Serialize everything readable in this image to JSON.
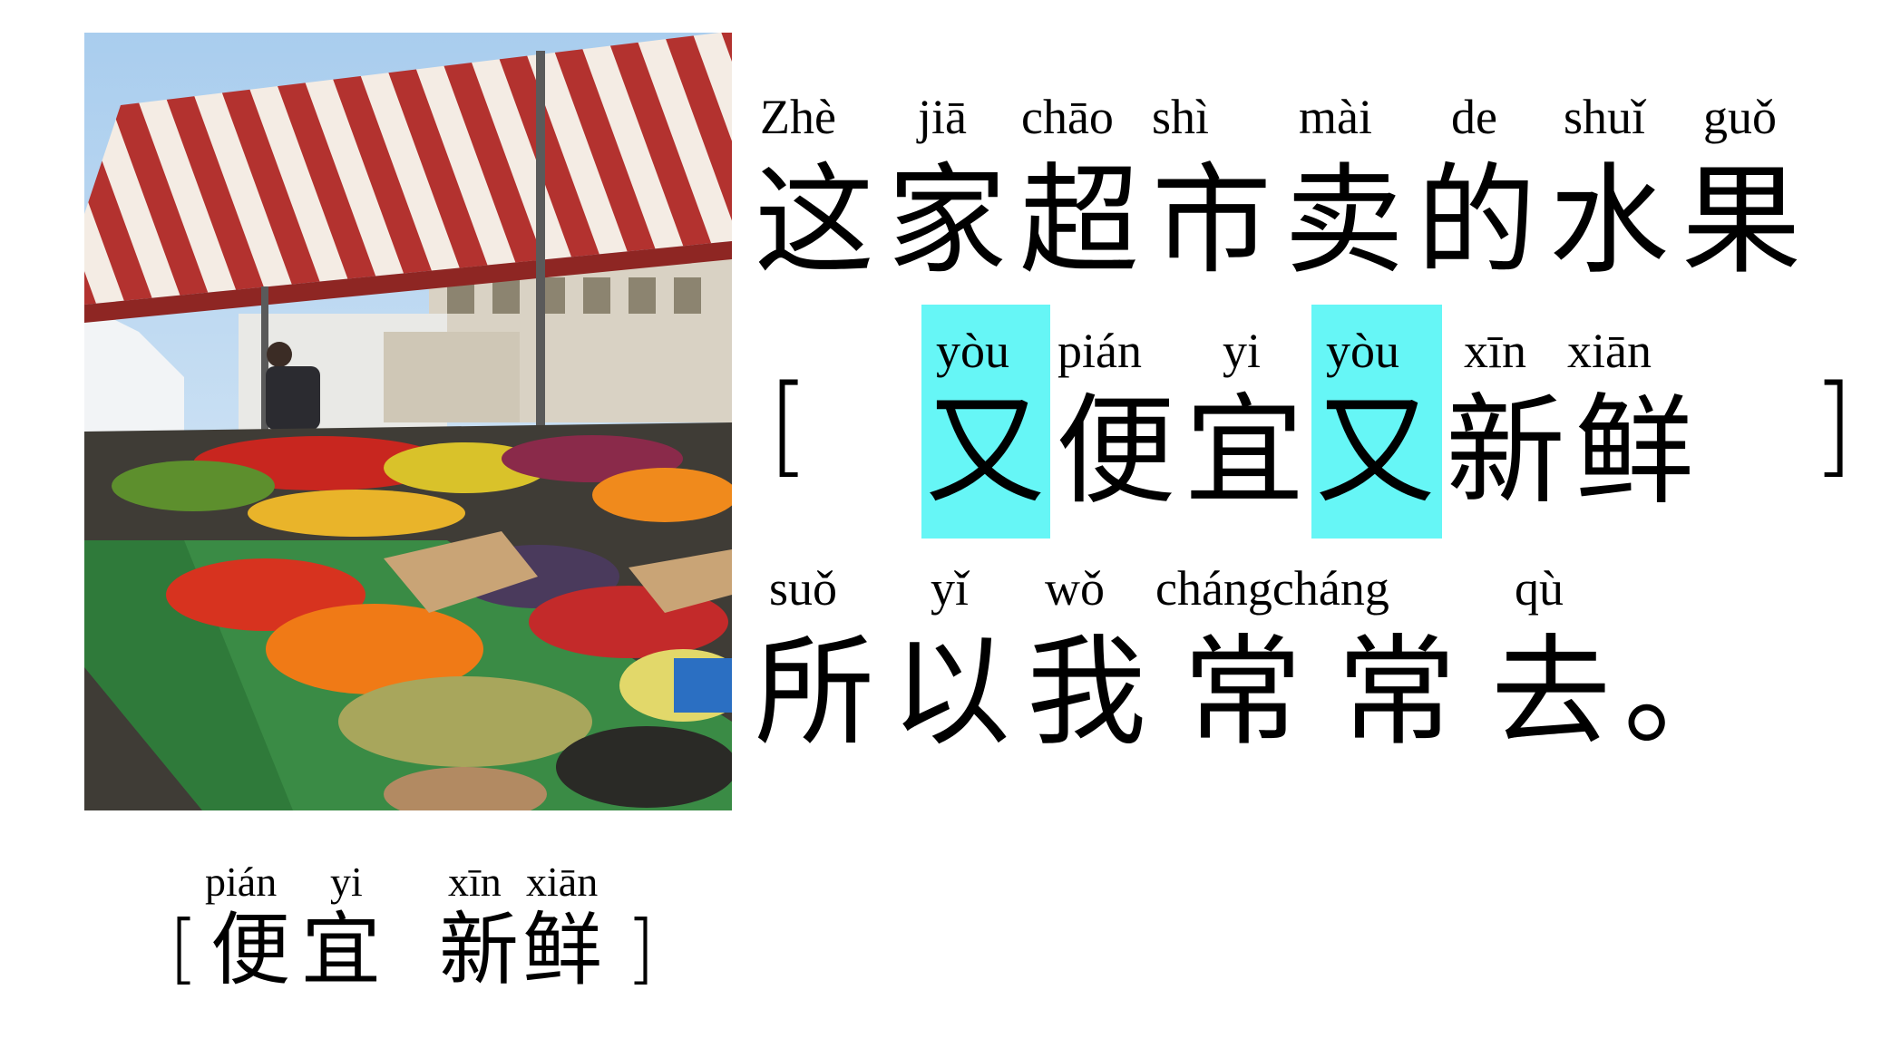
{
  "sentence": {
    "line1": {
      "pinyin": [
        "Zhè",
        "jiā",
        "chāo",
        "shì",
        "mài",
        "de",
        "shuǐ",
        "guǒ"
      ],
      "hanzi": "这家超市卖的水果"
    },
    "line2": {
      "bracket_open": "[",
      "bracket_close": "]",
      "pinyin": [
        "yòu",
        "pián",
        "yi",
        "yòu",
        "xīn",
        "xiān"
      ],
      "hanzi": [
        "又",
        "便",
        "宜",
        "又",
        "新",
        "鲜"
      ]
    },
    "line3": {
      "pinyin": [
        "suǒ",
        "yǐ",
        "wǒ",
        "chángcháng",
        "qù"
      ],
      "hanzi": [
        "所",
        "以",
        "我",
        "常",
        "常",
        "去",
        "。"
      ]
    }
  },
  "vocab": {
    "pinyin": [
      "pián",
      "yi",
      "xīn",
      "xiān"
    ],
    "hanzi": [
      "便宜",
      "新鲜"
    ],
    "bracket_open": "[",
    "bracket_close": "]"
  },
  "colors": {
    "highlight": "#66f6f6",
    "text": "#000000",
    "background": "#ffffff"
  }
}
